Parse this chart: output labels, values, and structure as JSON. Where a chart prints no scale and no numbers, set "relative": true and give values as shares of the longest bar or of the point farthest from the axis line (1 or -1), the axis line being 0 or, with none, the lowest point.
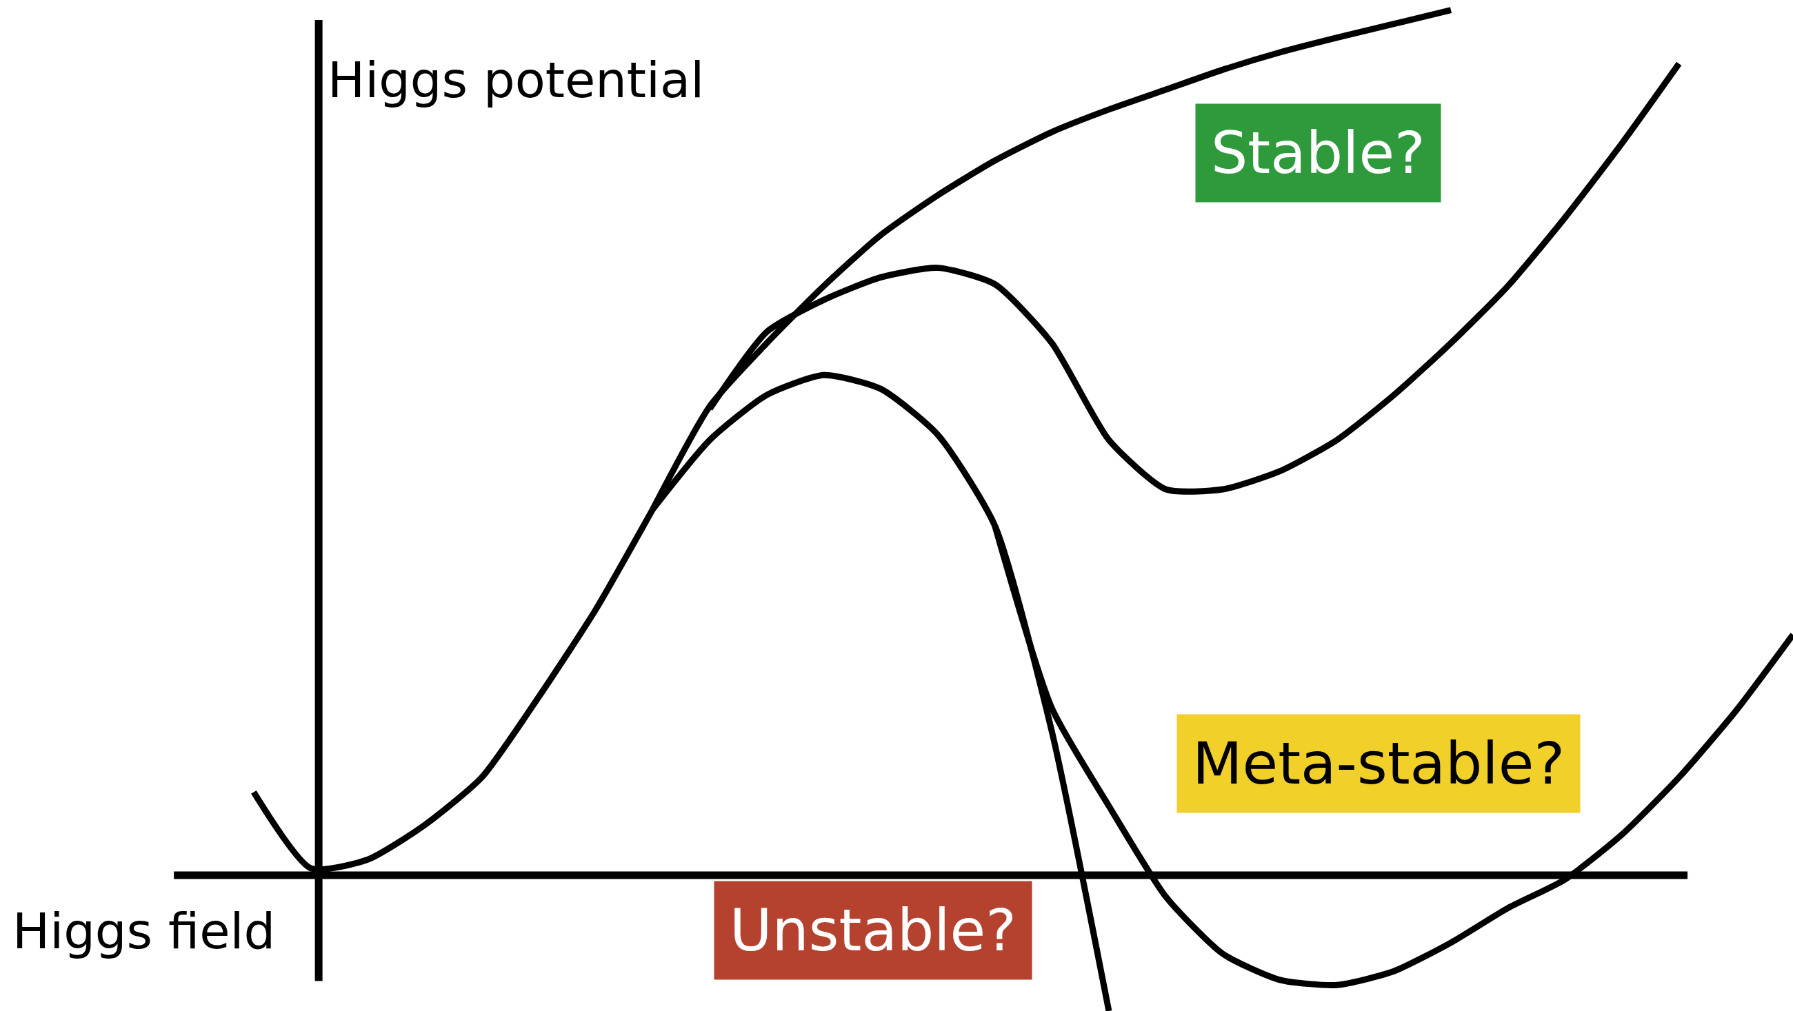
{
  "chart_data": {
    "type": "line",
    "relative": true,
    "xlabel": "Higgs field",
    "ylabel": "Higgs potential",
    "categories": [
      null,
      null,
      null,
      null,
      null,
      null,
      null,
      null,
      null,
      null,
      null,
      null,
      null,
      null,
      null,
      null,
      null,
      null,
      null,
      null,
      null,
      null,
      null,
      null,
      null,
      null,
      null,
      null
    ],
    "series": [
      {
        "color": "#000000",
        "values": [
          0.096,
          0.008,
          0.018,
          0.058,
          0.113,
          0.206,
          0.307,
          0.423,
          null,
          null,
          null,
          null,
          null,
          null,
          null,
          null,
          null,
          null,
          null,
          null,
          null,
          null,
          null,
          null,
          null,
          null,
          null,
          null
        ]
      },
      {
        "color": "#000000",
        "values": [
          null,
          null,
          null,
          null,
          null,
          null,
          null,
          0.423,
          0.503,
          0.555,
          0.578,
          0.562,
          0.509,
          0.404,
          0.166,
          -0.157,
          null,
          null,
          null,
          null,
          null,
          null,
          null,
          null,
          null,
          null,
          null,
          null
        ]
      },
      {
        "color": "#000000",
        "values": [
          null,
          null,
          null,
          null,
          null,
          null,
          null,
          null,
          null,
          null,
          null,
          null,
          null,
          0.404,
          0.193,
          0.08,
          -0.025,
          -0.091,
          -0.121,
          -0.127,
          -0.111,
          -0.078,
          -0.038,
          -0.005,
          0.047,
          0.113,
          0.19,
          0.278
        ]
      },
      {
        "color": "#000000",
        "values": [
          null,
          null,
          null,
          null,
          null,
          null,
          null,
          null,
          0.539,
          0.628,
          0.665,
          0.691,
          0.702,
          0.683,
          0.615,
          0.503,
          0.446,
          0.446,
          0.467,
          0.503,
          0.555,
          0.615,
          0.681,
          0.76,
          0.846,
          0.938,
          null,
          null
        ]
      },
      {
        "color": "#000000",
        "values": [
          null,
          null,
          null,
          null,
          null,
          null,
          null,
          0.423,
          0.542,
          0.615,
          0.681,
          0.74,
          0.786,
          0.826,
          0.859,
          0.885,
          0.908,
          0.931,
          0.951,
          0.968,
          0.984,
          1.0,
          null,
          null,
          null,
          null,
          null,
          null
        ]
      }
    ],
    "annotations": [
      "Stable?",
      "Meta-stable?",
      "Unstable?"
    ],
    "marker": "none",
    "line_style": "solid"
  }
}
